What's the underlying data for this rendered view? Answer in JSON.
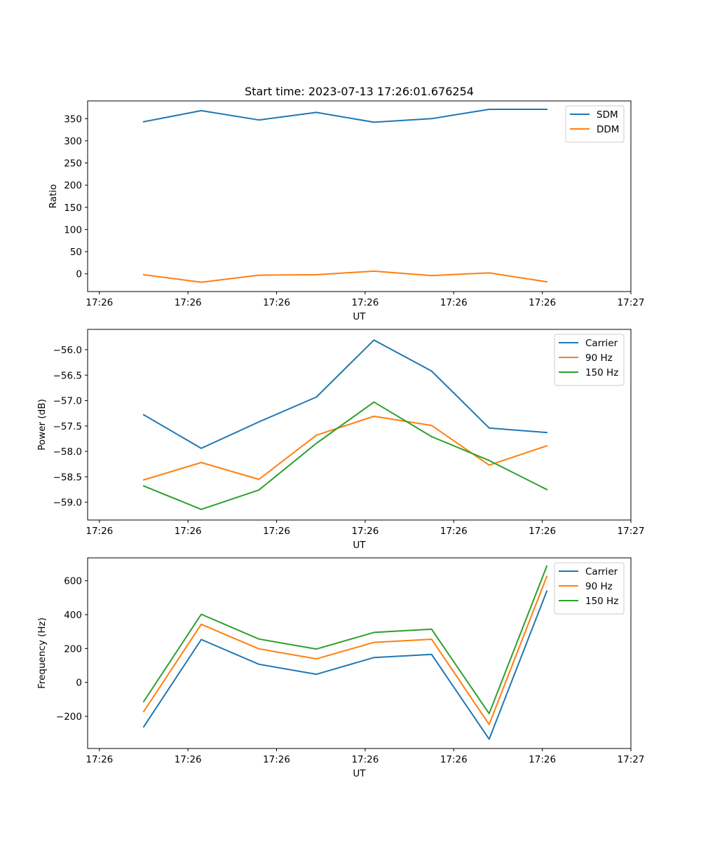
{
  "chart_data": [
    {
      "type": "line",
      "title": "Start time: 2023-07-13 17:26:01.676254",
      "xlabel": "UT",
      "ylabel": "Ratio",
      "xticks": [
        "17:26",
        "17:26",
        "17:26",
        "17:26",
        "17:26",
        "17:26",
        "17:27"
      ],
      "yticks": [
        "0",
        "50",
        "100",
        "150",
        "200",
        "250",
        "300",
        "350"
      ],
      "ytick_values": [
        0,
        50,
        100,
        150,
        200,
        250,
        300,
        350
      ],
      "xlim": [
        0,
        12
      ],
      "ylim": [
        -40,
        390
      ],
      "legend_position": "top-right",
      "x": [
        1,
        2.3,
        3.6,
        4.9,
        6.2,
        7.5,
        8.8,
        10.1
      ],
      "series": [
        {
          "name": "SDM",
          "color": "#1f77b4",
          "values": [
            343,
            368,
            347,
            364,
            342,
            350,
            371,
            371
          ]
        },
        {
          "name": "DDM",
          "color": "#ff7f0e",
          "values": [
            -2,
            -19,
            -3,
            -2,
            6,
            -4,
            2,
            -18
          ]
        }
      ]
    },
    {
      "type": "line",
      "title": "",
      "xlabel": "UT",
      "ylabel": "Power (dB)",
      "xticks": [
        "17:26",
        "17:26",
        "17:26",
        "17:26",
        "17:26",
        "17:26",
        "17:27"
      ],
      "yticks": [
        "−56.0",
        "−56.5",
        "−57.0",
        "−57.5",
        "−58.0",
        "−58.5",
        "−59.0"
      ],
      "ytick_values": [
        -56.0,
        -56.5,
        -57.0,
        -57.5,
        -58.0,
        -58.5,
        -59.0
      ],
      "xlim": [
        0,
        12
      ],
      "ylim": [
        -59.35,
        -55.6
      ],
      "legend_position": "top-right",
      "x": [
        1,
        2.3,
        3.6,
        4.9,
        6.2,
        7.5,
        8.8,
        10.1
      ],
      "series": [
        {
          "name": "Carrier",
          "color": "#1f77b4",
          "values": [
            -57.28,
            -57.94,
            -57.42,
            -56.93,
            -55.81,
            -56.42,
            -57.54,
            -57.63
          ]
        },
        {
          "name": "90 Hz",
          "color": "#ff7f0e",
          "values": [
            -58.56,
            -58.22,
            -58.55,
            -57.68,
            -57.31,
            -57.49,
            -58.27,
            -57.89
          ]
        },
        {
          "name": "150 Hz",
          "color": "#2ca02c",
          "values": [
            -58.68,
            -59.14,
            -58.76,
            -57.84,
            -57.03,
            -57.71,
            -58.18,
            -58.75
          ]
        }
      ]
    },
    {
      "type": "line",
      "title": "",
      "xlabel": "UT",
      "ylabel": "Frequency (Hz)",
      "xticks": [
        "17:26",
        "17:26",
        "17:26",
        "17:26",
        "17:26",
        "17:26",
        "17:27"
      ],
      "yticks": [
        "−200",
        "0",
        "200",
        "400",
        "600"
      ],
      "ytick_values": [
        -200,
        0,
        200,
        400,
        600
      ],
      "xlim": [
        0,
        12
      ],
      "ylim": [
        -390,
        735
      ],
      "legend_position": "top-right",
      "x": [
        1,
        2.3,
        3.6,
        4.9,
        6.2,
        7.5,
        8.8,
        10.1
      ],
      "series": [
        {
          "name": "Carrier",
          "color": "#1f77b4",
          "values": [
            -262,
            253,
            107,
            48,
            147,
            165,
            -335,
            538
          ]
        },
        {
          "name": "90 Hz",
          "color": "#ff7f0e",
          "values": [
            -172,
            343,
            198,
            139,
            236,
            255,
            -248,
            625
          ]
        },
        {
          "name": "150 Hz",
          "color": "#2ca02c",
          "values": [
            -113,
            402,
            256,
            197,
            295,
            314,
            -184,
            686
          ]
        }
      ]
    }
  ]
}
